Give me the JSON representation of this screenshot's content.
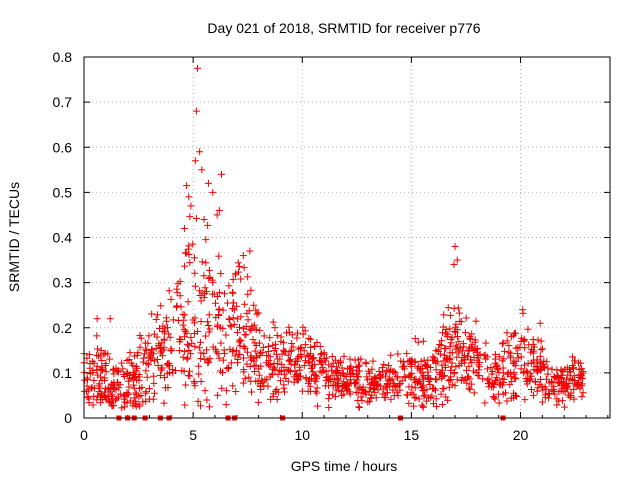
{
  "chart_data": {
    "type": "scatter",
    "title": "Day 021 of 2018, SRMTID for receiver p776",
    "xlabel": "GPS time / hours",
    "ylabel": "SRMTID / TECUs",
    "xlim": [
      0,
      24.1
    ],
    "ylim": [
      0,
      0.8
    ],
    "xticks": [
      0,
      5,
      10,
      15,
      20
    ],
    "yticks": [
      0,
      0.1,
      0.2,
      0.3,
      0.4,
      0.5,
      0.6,
      0.7,
      0.8
    ],
    "ytick_labels": [
      "0",
      "0.1",
      "0.2",
      "0.3",
      "0.4",
      "0.5",
      "0.6",
      "0.7",
      "0.8"
    ],
    "grid": true,
    "marker": "plus",
    "color": "#ee0000",
    "gap_markers_x": [
      1.6,
      2.0,
      2.3,
      2.8,
      3.5,
      3.9,
      6.6,
      6.9,
      9.1,
      14.5,
      19.2
    ],
    "envelope": {
      "x": [
        0,
        0.5,
        1,
        1.5,
        2,
        2.5,
        3,
        3.5,
        4,
        4.5,
        5,
        5.5,
        6,
        6.5,
        7,
        7.5,
        8,
        8.5,
        9,
        9.5,
        10,
        10.5,
        11,
        11.5,
        12,
        12.5,
        13,
        13.5,
        14,
        14.5,
        15,
        15.5,
        16,
        16.5,
        17,
        17.5,
        18,
        18.5,
        19,
        19.5,
        20,
        20.5,
        21,
        21.5,
        22,
        22.5,
        22.9
      ],
      "median": [
        0.08,
        0.09,
        0.08,
        0.07,
        0.08,
        0.09,
        0.13,
        0.15,
        0.17,
        0.2,
        0.22,
        0.2,
        0.21,
        0.16,
        0.2,
        0.2,
        0.13,
        0.12,
        0.12,
        0.13,
        0.12,
        0.11,
        0.1,
        0.09,
        0.08,
        0.08,
        0.07,
        0.08,
        0.08,
        0.09,
        0.09,
        0.09,
        0.1,
        0.13,
        0.16,
        0.13,
        0.12,
        0.1,
        0.09,
        0.11,
        0.13,
        0.12,
        0.1,
        0.08,
        0.08,
        0.08,
        0.09
      ],
      "spread": [
        0.04,
        0.05,
        0.05,
        0.04,
        0.04,
        0.05,
        0.06,
        0.07,
        0.08,
        0.11,
        0.14,
        0.13,
        0.11,
        0.08,
        0.09,
        0.08,
        0.05,
        0.05,
        0.05,
        0.05,
        0.05,
        0.04,
        0.04,
        0.03,
        0.03,
        0.03,
        0.03,
        0.03,
        0.03,
        0.03,
        0.04,
        0.04,
        0.05,
        0.06,
        0.07,
        0.06,
        0.05,
        0.04,
        0.04,
        0.05,
        0.05,
        0.05,
        0.04,
        0.03,
        0.03,
        0.03,
        0.03
      ],
      "point_count": 1400
    },
    "outliers": [
      {
        "x": 5.2,
        "y": 0.775
      },
      {
        "x": 5.15,
        "y": 0.68
      },
      {
        "x": 5.3,
        "y": 0.59
      },
      {
        "x": 5.1,
        "y": 0.57
      },
      {
        "x": 5.4,
        "y": 0.55
      },
      {
        "x": 6.3,
        "y": 0.54
      },
      {
        "x": 4.7,
        "y": 0.515
      },
      {
        "x": 5.7,
        "y": 0.52
      },
      {
        "x": 4.8,
        "y": 0.49
      },
      {
        "x": 5.9,
        "y": 0.5
      },
      {
        "x": 4.9,
        "y": 0.47
      },
      {
        "x": 6.1,
        "y": 0.45
      },
      {
        "x": 6.2,
        "y": 0.46
      },
      {
        "x": 5.5,
        "y": 0.44
      },
      {
        "x": 4.6,
        "y": 0.42
      },
      {
        "x": 7.6,
        "y": 0.37
      },
      {
        "x": 7.3,
        "y": 0.36
      },
      {
        "x": 17.0,
        "y": 0.38
      },
      {
        "x": 17.1,
        "y": 0.35
      },
      {
        "x": 16.95,
        "y": 0.34
      },
      {
        "x": 0.6,
        "y": 0.22
      },
      {
        "x": 1.2,
        "y": 0.22
      },
      {
        "x": 20.1,
        "y": 0.24
      },
      {
        "x": 20.9,
        "y": 0.21
      }
    ]
  }
}
